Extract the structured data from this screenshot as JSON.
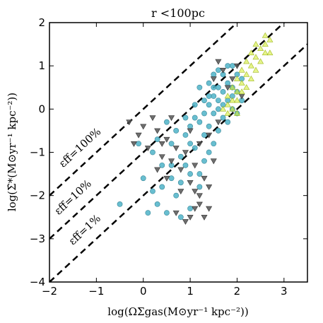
{
  "chart_data": {
    "type": "scatter",
    "title": "r <100pc",
    "xlabel": "log(ΩΣgas(M⊙yr⁻¹ kpc⁻²))",
    "ylabel": "log(Σ̇*(M⊙yr⁻¹ kpc⁻²))",
    "xlim": [
      -2,
      3.5
    ],
    "ylim": [
      -4,
      2
    ],
    "x_ticks": [
      "−2",
      "−1",
      "0",
      "1",
      "2",
      "3"
    ],
    "y_ticks": [
      "−4",
      "−3",
      "−2",
      "−1",
      "0",
      "1",
      "2"
    ],
    "x_tick_values": [
      -2,
      -1,
      0,
      1,
      2,
      3
    ],
    "y_tick_values": [
      -4,
      -3,
      -2,
      -1,
      0,
      1,
      2
    ],
    "grid": false,
    "reference_lines": [
      {
        "label": "εff=100%",
        "offset": 0
      },
      {
        "label": "εff=10%",
        "offset": -1
      },
      {
        "label": "εff=1%",
        "offset": -2
      }
    ],
    "series": [
      {
        "marker": "circle",
        "color": "#4db3c8",
        "edge": "#3a8899",
        "points": [
          [
            -0.5,
            -2.2
          ],
          [
            0.1,
            -2.4
          ],
          [
            0.2,
            -1.9
          ],
          [
            0.3,
            -2.2
          ],
          [
            0.5,
            -2.4
          ],
          [
            0.6,
            -1.6
          ],
          [
            0.7,
            -2.0
          ],
          [
            0.8,
            -1.7
          ],
          [
            0.2,
            -1.0
          ],
          [
            0.4,
            -1.3
          ],
          [
            0.6,
            -0.8
          ],
          [
            0.8,
            -1.1
          ],
          [
            0.9,
            -0.6
          ],
          [
            1.0,
            -1.5
          ],
          [
            1.1,
            -0.9
          ],
          [
            1.2,
            -0.3
          ],
          [
            1.2,
            -1.8
          ],
          [
            1.3,
            -0.6
          ],
          [
            1.3,
            -1.2
          ],
          [
            1.4,
            0.1
          ],
          [
            1.4,
            -0.4
          ],
          [
            1.5,
            0.3
          ],
          [
            1.5,
            -0.1
          ],
          [
            1.5,
            -0.8
          ],
          [
            1.6,
            0.5
          ],
          [
            1.6,
            0.0
          ],
          [
            1.6,
            -0.5
          ],
          [
            1.7,
            0.4
          ],
          [
            1.7,
            -0.2
          ],
          [
            1.7,
            0.8
          ],
          [
            1.8,
            0.2
          ],
          [
            1.8,
            0.6
          ],
          [
            1.8,
            -0.3
          ],
          [
            1.9,
            0.5
          ],
          [
            1.9,
            0.0
          ],
          [
            1.9,
            1.0
          ],
          [
            2.0,
            0.4
          ],
          [
            2.0,
            -0.1
          ],
          [
            2.1,
            0.7
          ],
          [
            2.1,
            0.2
          ],
          [
            1.3,
            0.2
          ],
          [
            1.4,
            0.6
          ],
          [
            1.5,
            0.8
          ],
          [
            1.1,
            -0.2
          ],
          [
            1.0,
            -0.4
          ],
          [
            0.9,
            -1.3
          ],
          [
            0.7,
            -0.5
          ],
          [
            0.5,
            -0.3
          ],
          [
            0.3,
            -0.7
          ],
          [
            -0.1,
            -0.8
          ],
          [
            0.0,
            -1.6
          ],
          [
            0.4,
            -1.8
          ],
          [
            0.6,
            -1.3
          ],
          [
            1.2,
            0.5
          ],
          [
            1.6,
            0.9
          ],
          [
            1.8,
            1.0
          ],
          [
            1.4,
            -1.0
          ],
          [
            1.2,
            -1.5
          ],
          [
            1.0,
            -2.3
          ],
          [
            0.8,
            -2.5
          ],
          [
            1.5,
            0.5
          ],
          [
            1.6,
            0.2
          ],
          [
            1.7,
            0.1
          ],
          [
            1.3,
            -0.1
          ],
          [
            1.4,
            0.3
          ],
          [
            1.9,
            0.3
          ],
          [
            2.0,
            0.8
          ],
          [
            1.1,
            0.1
          ],
          [
            1.0,
            -0.8
          ],
          [
            0.9,
            -0.2
          ]
        ]
      },
      {
        "marker": "triangle-down",
        "color": "#555555",
        "edge": "#333333",
        "points": [
          [
            -0.3,
            -0.3
          ],
          [
            -0.1,
            -0.6
          ],
          [
            0.1,
            -0.9
          ],
          [
            0.2,
            -0.2
          ],
          [
            0.3,
            -0.5
          ],
          [
            0.4,
            -1.1
          ],
          [
            0.5,
            -0.7
          ],
          [
            0.6,
            -1.2
          ],
          [
            0.7,
            -0.9
          ],
          [
            0.8,
            -1.4
          ],
          [
            0.9,
            -1.0
          ],
          [
            1.0,
            -1.7
          ],
          [
            1.1,
            -1.3
          ],
          [
            1.2,
            -2.0
          ],
          [
            1.3,
            -2.5
          ],
          [
            0.9,
            -2.6
          ],
          [
            0.7,
            -2.4
          ],
          [
            1.1,
            -2.3
          ],
          [
            1.3,
            -1.6
          ],
          [
            1.5,
            -1.2
          ],
          [
            1.4,
            -1.8
          ],
          [
            1.2,
            -0.8
          ],
          [
            1.0,
            -0.5
          ],
          [
            1.5,
            0.7
          ],
          [
            1.6,
            1.1
          ],
          [
            1.7,
            0.9
          ],
          [
            1.8,
            0.5
          ],
          [
            1.9,
            0.7
          ],
          [
            2.0,
            1.0
          ],
          [
            2.1,
            0.3
          ],
          [
            1.6,
            -0.3
          ],
          [
            1.4,
            -0.6
          ],
          [
            0.6,
            -0.2
          ],
          [
            0.3,
            -1.4
          ],
          [
            0.0,
            -0.4
          ],
          [
            -0.2,
            -0.8
          ],
          [
            1.2,
            -2.2
          ],
          [
            1.0,
            -2.5
          ],
          [
            1.4,
            -2.3
          ],
          [
            1.1,
            -1.9
          ],
          [
            0.8,
            -1.9
          ],
          [
            0.4,
            -0.8
          ],
          [
            0.5,
            -1.6
          ]
        ]
      },
      {
        "marker": "triangle-up",
        "color": "#d4ec3a",
        "edge": "#a0b820",
        "points": [
          [
            1.7,
            0.0
          ],
          [
            1.8,
            0.1
          ],
          [
            1.8,
            0.3
          ],
          [
            1.9,
            0.2
          ],
          [
            1.9,
            0.5
          ],
          [
            2.0,
            0.4
          ],
          [
            2.0,
            0.7
          ],
          [
            2.1,
            0.6
          ],
          [
            2.1,
            0.9
          ],
          [
            2.2,
            0.8
          ],
          [
            2.2,
            1.1
          ],
          [
            2.3,
            1.0
          ],
          [
            2.3,
            1.3
          ],
          [
            2.4,
            1.2
          ],
          [
            2.5,
            1.4
          ],
          [
            2.6,
            1.5
          ],
          [
            2.6,
            1.3
          ],
          [
            2.7,
            1.6
          ],
          [
            2.7,
            1.3
          ],
          [
            2.5,
            1.1
          ],
          [
            2.4,
            0.9
          ],
          [
            2.2,
            0.5
          ],
          [
            2.0,
            0.2
          ],
          [
            1.9,
            0.0
          ],
          [
            2.1,
            0.4
          ],
          [
            2.3,
            0.7
          ],
          [
            1.8,
            -0.1
          ],
          [
            2.0,
            -0.1
          ],
          [
            2.4,
            1.5
          ],
          [
            2.6,
            1.7
          ]
        ]
      }
    ]
  }
}
